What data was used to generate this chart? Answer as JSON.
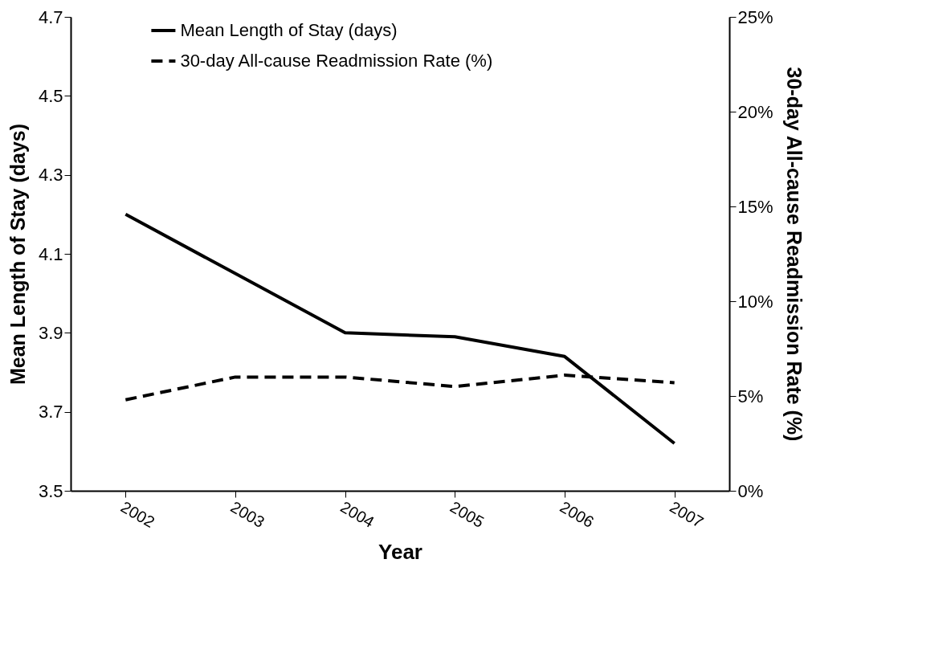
{
  "chart_data": {
    "type": "line",
    "xlabel": "Year",
    "ylabel": "Mean Length of Stay (days)",
    "y2label": "30-day All-cause Readmission Rate (%)",
    "categories": [
      "2002",
      "2003",
      "2004",
      "2005",
      "2006",
      "2007"
    ],
    "series": [
      {
        "name": "Mean Length of Stay (days)",
        "color": "#000000",
        "line_style": "solid",
        "values": [
          4.2,
          4.05,
          3.9,
          3.89,
          3.84,
          3.62
        ]
      },
      {
        "name": "30-day All-cause Readmission Rate (%)",
        "color": "#000000",
        "line_style": "dashed",
        "axis": "y2",
        "values": [
          4.8,
          6.0,
          6.0,
          5.5,
          6.1,
          5.7
        ]
      }
    ],
    "ylim": [
      3.5,
      4.7
    ],
    "yticks": [
      3.5,
      3.7,
      3.9,
      4.1,
      4.3,
      4.5,
      4.7
    ],
    "y2lim": [
      0,
      25
    ],
    "y2ticks": [
      {
        "value": 0,
        "label": "0%"
      },
      {
        "value": 5,
        "label": "5%"
      },
      {
        "value": 10,
        "label": "10%"
      },
      {
        "value": 15,
        "label": "15%"
      },
      {
        "value": 20,
        "label": "20%"
      },
      {
        "value": 25,
        "label": "25%"
      }
    ],
    "legend": "top",
    "grid": false,
    "marker": "none"
  }
}
